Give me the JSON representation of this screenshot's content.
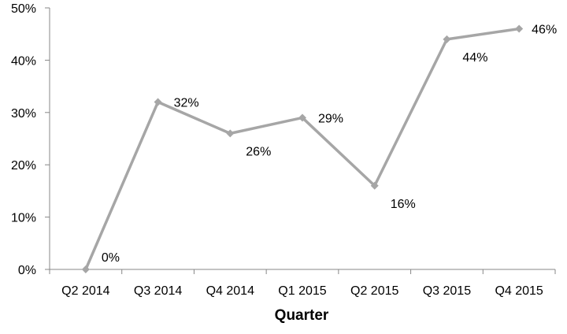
{
  "chart_data": {
    "type": "line",
    "categories": [
      "Q2 2014",
      "Q3 2014",
      "Q4 2014",
      "Q1 2015",
      "Q2 2015",
      "Q3 2015",
      "Q4 2015"
    ],
    "series": [
      {
        "values": [
          0,
          32,
          26,
          29,
          16,
          44,
          46
        ],
        "data_labels": [
          "0%",
          "32%",
          "26%",
          "29%",
          "16%",
          "44%",
          "46%"
        ],
        "color": "#a6a6a6",
        "marker": "diamond"
      }
    ],
    "y_ticks": [
      0,
      10,
      20,
      30,
      40,
      50
    ],
    "y_tick_labels": [
      "0%",
      "10%",
      "20%",
      "30%",
      "40%",
      "50%"
    ],
    "ylim": [
      0,
      50
    ],
    "xlabel": "Quarter",
    "ylabel": "",
    "title": "",
    "grid": false,
    "legend": "none"
  }
}
